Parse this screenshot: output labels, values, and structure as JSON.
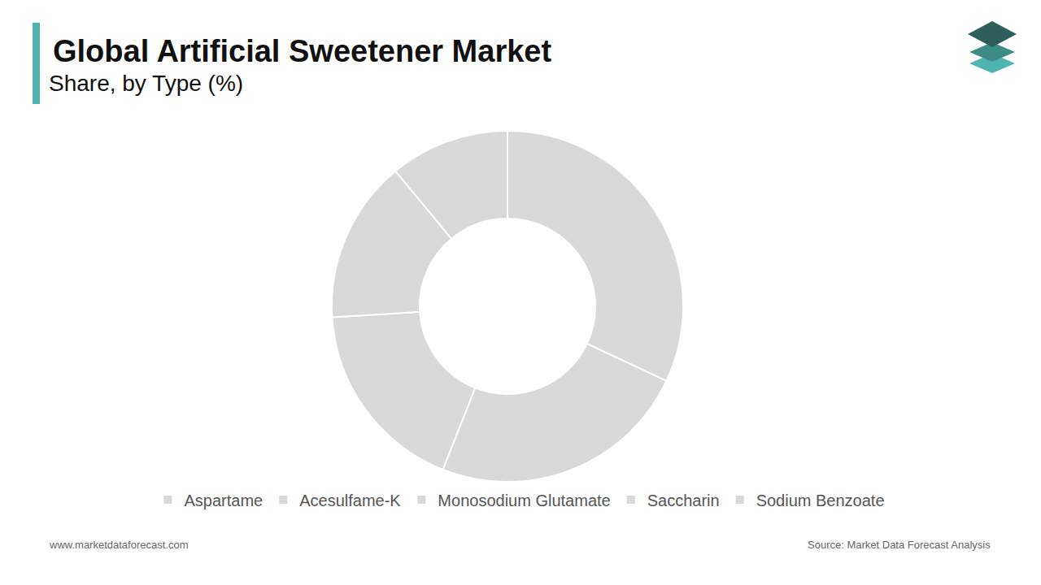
{
  "chart_data": {
    "type": "pie",
    "title": "Global Artificial Sweetener Market",
    "subtitle": "Share, by Type (%)",
    "categories": [
      "Aspartame",
      "Acesulfame-K",
      "Monosodium Glutamate",
      "Saccharin",
      "Sodium Benzoate"
    ],
    "values": [
      32,
      24,
      18,
      15,
      11
    ],
    "colors": [
      "#d9d9d9",
      "#d9d9d9",
      "#d9d9d9",
      "#d9d9d9",
      "#d9d9d9"
    ],
    "legend": "bottom",
    "data_labels": false,
    "annotations": [
      "www.marketdataforecast.com",
      "Source: Market Data Forecast Analysis"
    ]
  }
}
